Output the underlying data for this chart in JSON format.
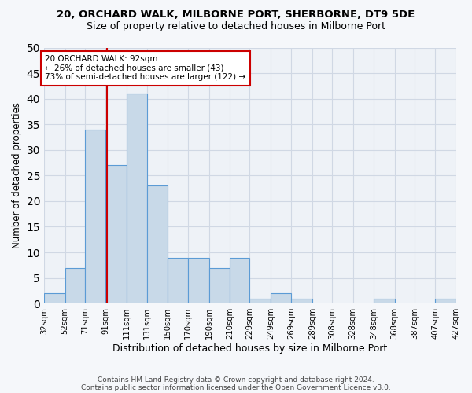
{
  "title1": "20, ORCHARD WALK, MILBORNE PORT, SHERBORNE, DT9 5DE",
  "title2": "Size of property relative to detached houses in Milborne Port",
  "xlabel": "Distribution of detached houses by size in Milborne Port",
  "ylabel": "Number of detached properties",
  "bar_color": "#c8d9e8",
  "bar_edge_color": "#5b9bd5",
  "annotation_line_color": "#cc0000",
  "annotation_box_color": "#cc0000",
  "annotation_text": "20 ORCHARD WALK: 92sqm\n← 26% of detached houses are smaller (43)\n73% of semi-detached houses are larger (122) →",
  "property_size": 92,
  "bins": [
    32,
    52,
    71,
    91,
    111,
    131,
    150,
    170,
    190,
    210,
    229,
    249,
    269,
    289,
    308,
    328,
    348,
    368,
    387,
    407,
    427
  ],
  "counts": [
    2,
    7,
    34,
    27,
    41,
    23,
    9,
    9,
    7,
    9,
    1,
    2,
    1,
    0,
    0,
    0,
    1,
    0,
    0,
    1
  ],
  "tick_labels": [
    "32sqm",
    "52sqm",
    "71sqm",
    "91sqm",
    "111sqm",
    "131sqm",
    "150sqm",
    "170sqm",
    "190sqm",
    "210sqm",
    "229sqm",
    "249sqm",
    "269sqm",
    "289sqm",
    "308sqm",
    "328sqm",
    "348sqm",
    "368sqm",
    "387sqm",
    "407sqm",
    "427sqm"
  ],
  "ylim": [
    0,
    50
  ],
  "yticks": [
    0,
    5,
    10,
    15,
    20,
    25,
    30,
    35,
    40,
    45,
    50
  ],
  "grid_color": "#d0d8e4",
  "bg_color": "#eef2f7",
  "fig_bg_color": "#f5f7fa",
  "footnote1": "Contains HM Land Registry data © Crown copyright and database right 2024.",
  "footnote2": "Contains public sector information licensed under the Open Government Licence v3.0."
}
